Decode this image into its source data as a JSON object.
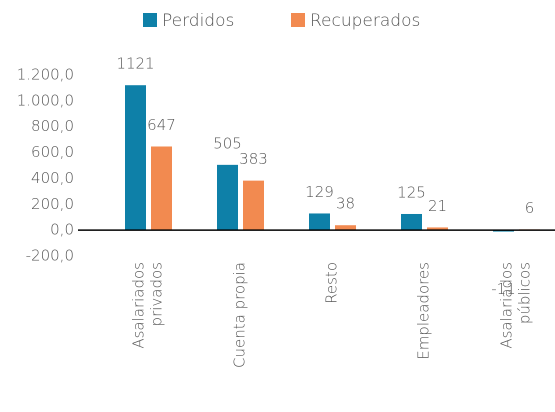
{
  "chart_data": {
    "type": "bar",
    "categories": [
      [
        "Asalariados",
        "privados"
      ],
      [
        "Cuenta propia"
      ],
      [
        "Resto"
      ],
      [
        "Empleadores"
      ],
      [
        "Asalariados",
        "públicos"
      ]
    ],
    "series": [
      {
        "name": "Perdidos",
        "color": "#0e80a8",
        "values": [
          1121,
          505,
          129,
          125,
          -11
        ]
      },
      {
        "name": "Recuperados",
        "color": "#f28a50",
        "values": [
          647,
          383,
          38,
          21,
          6
        ]
      }
    ],
    "ylim": [
      -200,
      1200
    ],
    "yticks": [
      {
        "value": -200,
        "label": "-200,0"
      },
      {
        "value": 0,
        "label": "0,0"
      },
      {
        "value": 200,
        "label": "200,0"
      },
      {
        "value": 400,
        "label": "400,0"
      },
      {
        "value": 600,
        "label": "600,0"
      },
      {
        "value": 800,
        "label": "800,0"
      },
      {
        "value": 1000,
        "label": "1.000,0"
      },
      {
        "value": 1200,
        "label": "1.200,0"
      }
    ],
    "legend": "top"
  }
}
